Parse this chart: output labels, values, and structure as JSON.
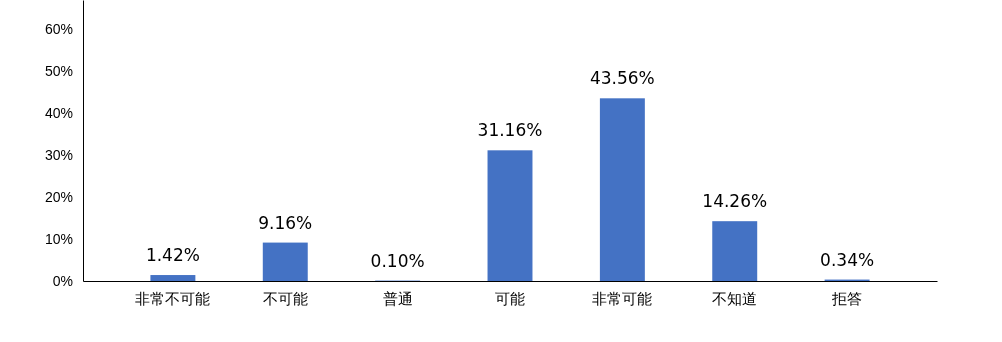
{
  "chart_data": {
    "type": "bar",
    "categories": [
      "非常不可能",
      "不可能",
      "普通",
      "可能",
      "非常可能",
      "不知道",
      "拒答"
    ],
    "values": [
      1.42,
      9.16,
      0.1,
      31.16,
      43.56,
      14.26,
      0.34
    ],
    "value_labels": [
      "1.42%",
      "9.16%",
      "0.10%",
      "31.16%",
      "43.56%",
      "14.26%",
      "0.34%"
    ],
    "color": "#4472c4",
    "ylim": [
      0,
      67
    ],
    "yticks": [
      {
        "value": 0,
        "label": "0%"
      },
      {
        "value": 10,
        "label": "10%"
      },
      {
        "value": 20,
        "label": "20%"
      },
      {
        "value": 30,
        "label": "30%"
      },
      {
        "value": 40,
        "label": "40%"
      },
      {
        "value": 50,
        "label": "50%"
      },
      {
        "value": 60,
        "label": "60%"
      }
    ],
    "grid": false
  }
}
